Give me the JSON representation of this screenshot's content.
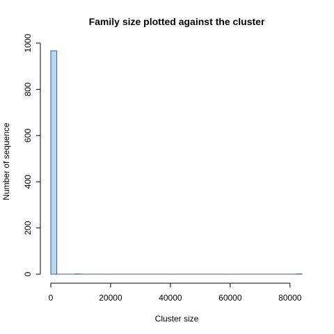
{
  "chart_data": {
    "type": "bar",
    "title": "Family size plotted against the cluster",
    "xlabel": "Cluster size",
    "ylabel": "Number of sequence",
    "xlim": [
      0,
      84000
    ],
    "ylim": [
      0,
      1000
    ],
    "xticks": [
      0,
      20000,
      40000,
      60000,
      80000
    ],
    "yticks": [
      0,
      200,
      400,
      600,
      800,
      1000
    ],
    "bin_width": 2000,
    "bins": [
      {
        "x0": 0,
        "x1": 2000,
        "value": 967
      },
      {
        "x0": 8000,
        "x1": 10000,
        "value": 1
      },
      {
        "x0": 82000,
        "x1": 84000,
        "value": 1
      }
    ],
    "grid": false,
    "colors": {
      "bar_fill": "#b9d9ec",
      "bar_stroke": "#3f56a6"
    }
  }
}
